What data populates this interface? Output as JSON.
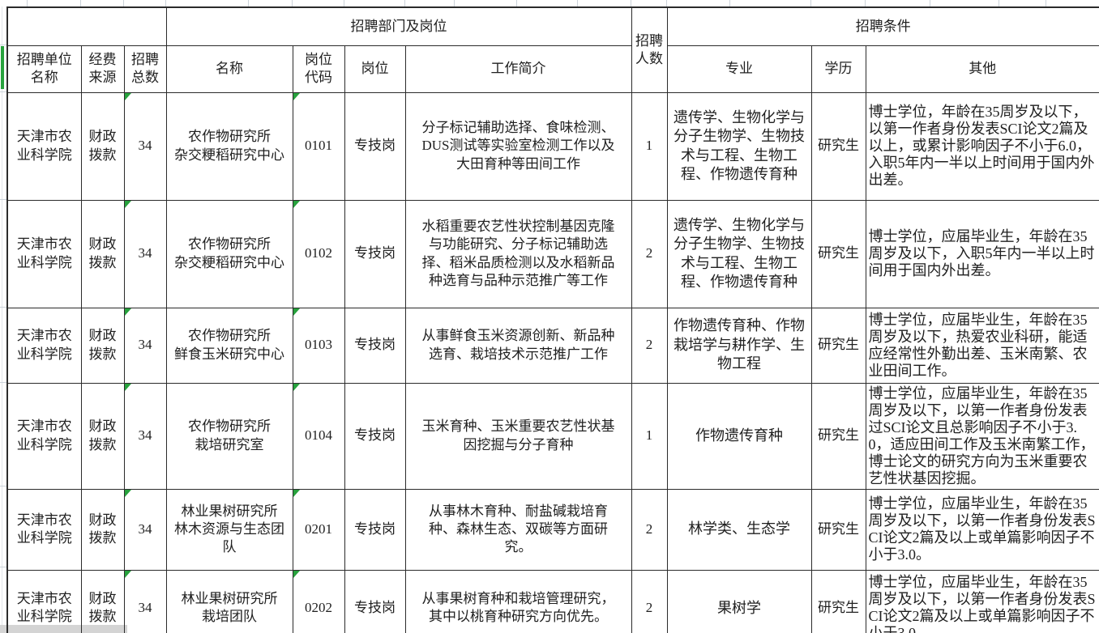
{
  "sheet": {
    "header": {
      "dept_group": "招聘部门及岗位",
      "headcount": "招聘\n人数",
      "cond_group": "招聘条件",
      "unit": "招聘单位\n名称",
      "funding": "经费\n来源",
      "total": "招聘\n总数",
      "dept": "名称",
      "code": "岗位\n代码",
      "post": "岗位",
      "duty": "工作简介",
      "major": "专业",
      "degree": "学历",
      "other": "其他"
    },
    "colors": {
      "accent_green": "#27a23d",
      "grid_line": "#ccd3da",
      "table_border": "#2b2b2b"
    },
    "rows": [
      {
        "unit": "天津市农业科学院",
        "funding": "财政拨款",
        "total": "34",
        "dept": "农作物研究所\n杂交粳稻研究中心",
        "code": "0101",
        "post": "专技岗",
        "duty": "分子标记辅助选择、食味检测、DUS测试等实验室检测工作以及大田育种等田间工作",
        "count": "1",
        "major": "遗传学、生物化学与分子生物学、生物技术与工程、生物工程、作物遗传育种",
        "degree": "研究生",
        "other": "博士学位，年龄在35周岁及以下，以第一作者身份发表SCI论文2篇及以上，或累计影响因子不小于6.0，入职5年内一半以上时间用于国内外出差。"
      },
      {
        "unit": "天津市农业科学院",
        "funding": "财政拨款",
        "total": "34",
        "dept": "农作物研究所\n杂交粳稻研究中心",
        "code": "0102",
        "post": "专技岗",
        "duty": "水稻重要农艺性状控制基因克隆与功能研究、分子标记辅助选择、稻米品质检测以及水稻新品种选育与品种示范推广等工作",
        "count": "2",
        "major": "遗传学、生物化学与分子生物学、生物技术与工程、生物工程、作物遗传育种",
        "degree": "研究生",
        "other": "博士学位，应届毕业生，年龄在35周岁及以下，入职5年内一半以上时间用于国内外出差。"
      },
      {
        "unit": "天津市农业科学院",
        "funding": "财政拨款",
        "total": "34",
        "dept": "农作物研究所\n鲜食玉米研究中心",
        "code": "0103",
        "post": "专技岗",
        "duty": "从事鲜食玉米资源创新、新品种选育、栽培技术示范推广工作",
        "count": "2",
        "major": "作物遗传育种、作物栽培学与耕作学、生物工程",
        "degree": "研究生",
        "other": "博士学位，应届毕业生，年龄在35周岁及以下，热爱农业科研，能适应经常性外勤出差、玉米南繁、农业田间工作。"
      },
      {
        "unit": "天津市农业科学院",
        "funding": "财政拨款",
        "total": "34",
        "dept": "农作物研究所\n栽培研究室",
        "code": "0104",
        "post": "专技岗",
        "duty": "玉米育种、玉米重要农艺性状基因挖掘与分子育种",
        "count": "1",
        "major": "作物遗传育种",
        "degree": "研究生",
        "other": "博士学位，应届毕业生，年龄在35周岁及以下，以第一作者身份发表过SCI论文且总影响因子不小于3.0，适应田间工作及玉米南繁工作，博士论文的研究方向为玉米重要农艺性状基因挖掘。"
      },
      {
        "unit": "天津市农业科学院",
        "funding": "财政拨款",
        "total": "34",
        "dept": "林业果树研究所\n林木资源与生态团队",
        "code": "0201",
        "post": "专技岗",
        "duty": "从事林木育种、耐盐碱栽培育种、森林生态、双碳等方面研究。",
        "count": "2",
        "major": "林学类、生态学",
        "degree": "研究生",
        "other": "博士学位，应届毕业生，年龄在35周岁及以下，以第一作者身份发表SCI论文2篇及以上或单篇影响因子不小于3.0。"
      },
      {
        "unit": "天津市农业科学院",
        "funding": "财政拨款",
        "total": "34",
        "dept": "林业果树研究所\n栽培团队",
        "code": "0202",
        "post": "专技岗",
        "duty": "从事果树育种和栽培管理研究，其中以桃育种研究方向优先。",
        "count": "2",
        "major": "果树学",
        "degree": "研究生",
        "other": "博士学位，应届毕业生，年龄在35周岁及以下，以第一作者身份发表SCI论文2篇及以上或单篇影响因子不小于3.0。"
      }
    ]
  }
}
